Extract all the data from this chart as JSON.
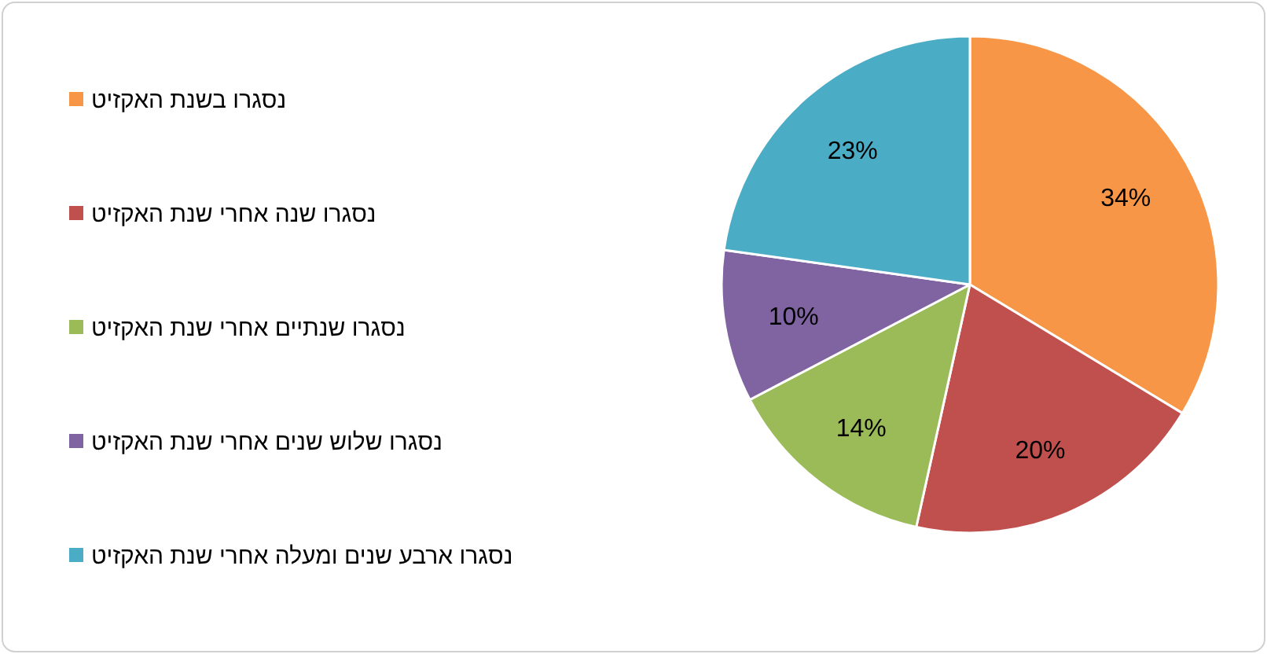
{
  "chart_data": {
    "type": "pie",
    "categories": [
      "נסגרו בשנת האקזיט",
      "נסגרו שנה אחרי שנת האקזיט",
      "נסגרו שנתיים אחרי שנת האקזיט",
      "נסגרו שלוש שנים אחרי שנת האקזיט",
      "נסגרו ארבע שנים ומעלה אחרי שנת האקזיט"
    ],
    "values": [
      34,
      20,
      14,
      10,
      23
    ],
    "value_labels": [
      "34%",
      "20%",
      "14%",
      "10%",
      "23%"
    ],
    "colors": [
      "#f79646",
      "#c0504d",
      "#9bbb59",
      "#8064a2",
      "#4bacc6"
    ],
    "legend": "left"
  }
}
